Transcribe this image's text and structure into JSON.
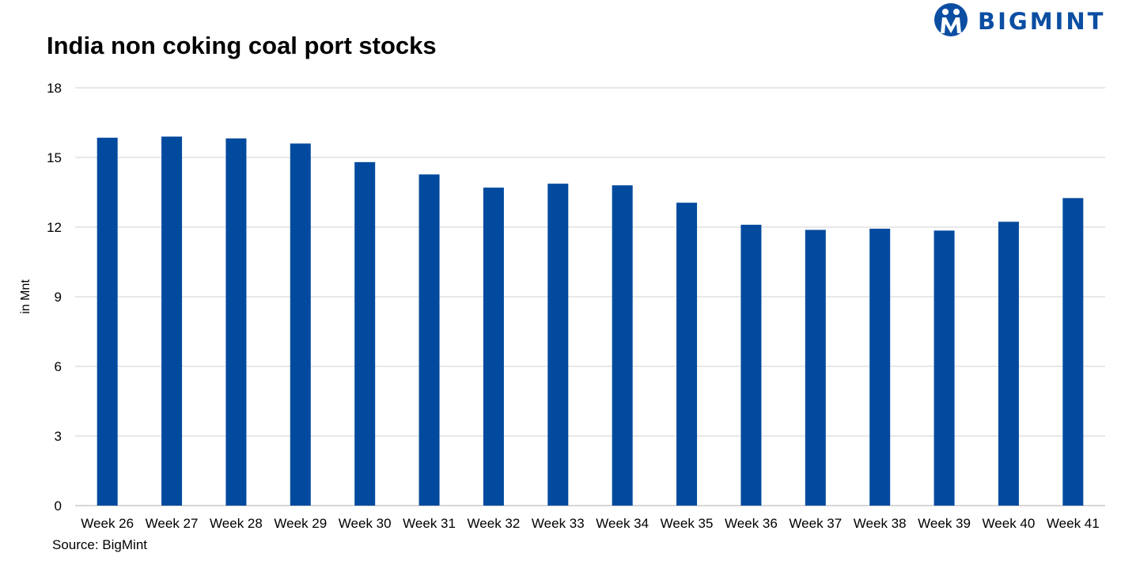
{
  "brand": {
    "name": "BIGMINT",
    "color": "#0b4ea2"
  },
  "source": "Source: BigMint",
  "chart_data": {
    "type": "bar",
    "title": "India non coking coal port stocks",
    "xlabel": "",
    "ylabel": "in Mnt",
    "ylim": [
      0,
      18
    ],
    "yticks": [
      0,
      3,
      6,
      9,
      12,
      15,
      18
    ],
    "grid": true,
    "bar_color": "#024a9e",
    "categories": [
      "Week 26",
      "Week 27",
      "Week 28",
      "Week 29",
      "Week 30",
      "Week 31",
      "Week 32",
      "Week 33",
      "Week 34",
      "Week 35",
      "Week 36",
      "Week 37",
      "Week 38",
      "Week 39",
      "Week 40",
      "Week 41"
    ],
    "values": [
      15.85,
      15.9,
      15.82,
      15.6,
      14.8,
      14.27,
      13.7,
      13.87,
      13.8,
      13.05,
      12.1,
      11.88,
      11.93,
      11.85,
      12.23,
      13.25
    ]
  }
}
